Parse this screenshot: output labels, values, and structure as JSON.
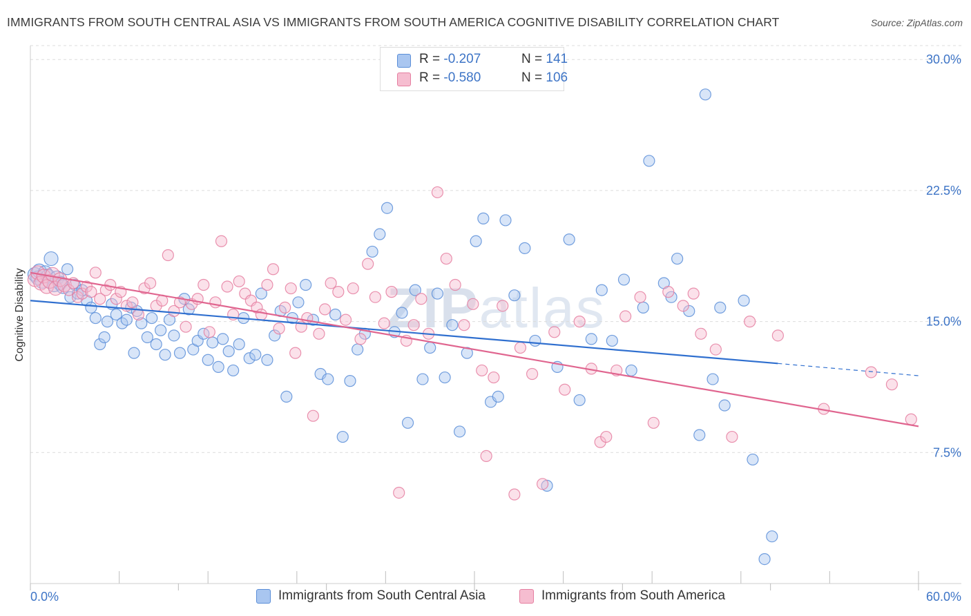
{
  "title": "IMMIGRANTS FROM SOUTH CENTRAL ASIA VS IMMIGRANTS FROM SOUTH AMERICA COGNITIVE DISABILITY CORRELATION CHART",
  "source": "Source: ZipAtlas.com",
  "watermark": {
    "zip": "ZIP",
    "atlas": "atlas"
  },
  "legend": {
    "r_label": "R =",
    "n_label": "N =",
    "rows": [
      {
        "r_value": "-0.207",
        "n_value": "141",
        "color": "#a9c6f0",
        "border": "#5a8ed8"
      },
      {
        "r_value": "-0.580",
        "n_value": "106",
        "color": "#f6bdd0",
        "border": "#e57ea0"
      }
    ]
  },
  "bottom_legend": [
    {
      "label": "Immigrants from South Central Asia",
      "color": "#a9c6f0",
      "border": "#5a8ed8"
    },
    {
      "label": "Immigrants from South America",
      "color": "#f6bdd0",
      "border": "#e57ea0"
    }
  ],
  "chart_data": {
    "type": "scatter",
    "title": "IMMIGRANTS FROM SOUTH CENTRAL ASIA VS IMMIGRANTS FROM SOUTH AMERICA COGNITIVE DISABILITY CORRELATION CHART",
    "xlabel": "",
    "ylabel": "Cognitive Disability",
    "xlim": [
      0,
      60
    ],
    "ylim": [
      0,
      30.8
    ],
    "x_tick_labels": [
      "0.0%",
      "60.0%"
    ],
    "y_ticks": [
      7.5,
      15.0,
      22.5,
      30.0
    ],
    "y_tick_labels": [
      "7.5%",
      "15.0%",
      "22.5%",
      "30.0%"
    ],
    "grid": true,
    "legend_position": "top-center",
    "series": [
      {
        "name": "Immigrants from South Central Asia",
        "color": "#5a8ed8",
        "fill": "#a9c6f0",
        "r": -0.207,
        "n": 141,
        "trend": {
          "x0": 0,
          "y0": 16.2,
          "x1": 50.5,
          "y1": 12.6,
          "dashed_to_x": 60,
          "dashed_to_y": 11.9,
          "color": "#2f6fcf"
        },
        "points": [
          [
            0.3,
            17.7
          ],
          [
            0.5,
            17.5
          ],
          [
            0.6,
            17.9
          ],
          [
            0.8,
            17.3
          ],
          [
            1.0,
            17.8
          ],
          [
            1.2,
            17.6
          ],
          [
            1.4,
            18.6
          ],
          [
            1.6,
            17.1
          ],
          [
            1.8,
            17.5
          ],
          [
            2.0,
            17.2
          ],
          [
            2.2,
            17.0
          ],
          [
            2.5,
            18.0
          ],
          [
            2.7,
            16.4
          ],
          [
            3.0,
            17.1
          ],
          [
            3.2,
            16.6
          ],
          [
            3.5,
            16.8
          ],
          [
            3.8,
            16.2
          ],
          [
            4.1,
            15.8
          ],
          [
            4.4,
            15.2
          ],
          [
            4.7,
            13.7
          ],
          [
            5.0,
            14.1
          ],
          [
            5.2,
            15.0
          ],
          [
            5.5,
            16.0
          ],
          [
            5.8,
            15.4
          ],
          [
            6.2,
            14.9
          ],
          [
            6.5,
            15.1
          ],
          [
            6.8,
            15.8
          ],
          [
            7.0,
            13.2
          ],
          [
            7.2,
            15.6
          ],
          [
            7.5,
            14.9
          ],
          [
            7.9,
            14.1
          ],
          [
            8.2,
            15.2
          ],
          [
            8.5,
            13.7
          ],
          [
            8.8,
            14.5
          ],
          [
            9.1,
            13.1
          ],
          [
            9.4,
            15.1
          ],
          [
            9.7,
            14.2
          ],
          [
            10.1,
            13.2
          ],
          [
            10.4,
            16.3
          ],
          [
            10.7,
            15.7
          ],
          [
            11.0,
            13.4
          ],
          [
            11.3,
            13.9
          ],
          [
            11.7,
            14.3
          ],
          [
            12.0,
            12.8
          ],
          [
            12.3,
            13.8
          ],
          [
            12.7,
            12.4
          ],
          [
            13.0,
            14.0
          ],
          [
            13.4,
            13.3
          ],
          [
            13.7,
            12.2
          ],
          [
            14.1,
            13.7
          ],
          [
            14.4,
            15.2
          ],
          [
            14.8,
            12.9
          ],
          [
            15.2,
            13.1
          ],
          [
            15.6,
            16.6
          ],
          [
            16.0,
            12.8
          ],
          [
            16.5,
            14.2
          ],
          [
            16.9,
            15.6
          ],
          [
            17.3,
            10.7
          ],
          [
            17.7,
            15.2
          ],
          [
            18.1,
            16.1
          ],
          [
            18.6,
            17.1
          ],
          [
            19.1,
            15.1
          ],
          [
            19.6,
            12.0
          ],
          [
            20.1,
            11.7
          ],
          [
            20.6,
            15.4
          ],
          [
            21.1,
            8.4
          ],
          [
            21.6,
            11.6
          ],
          [
            22.1,
            13.4
          ],
          [
            22.6,
            14.3
          ],
          [
            23.1,
            19.0
          ],
          [
            23.6,
            20.0
          ],
          [
            24.1,
            21.5
          ],
          [
            24.6,
            14.4
          ],
          [
            25.1,
            15.5
          ],
          [
            25.5,
            9.2
          ],
          [
            26.0,
            16.8
          ],
          [
            26.5,
            11.7
          ],
          [
            27.0,
            13.5
          ],
          [
            27.5,
            16.6
          ],
          [
            28.0,
            11.8
          ],
          [
            28.5,
            14.8
          ],
          [
            29.0,
            8.7
          ],
          [
            29.5,
            13.2
          ],
          [
            30.1,
            19.6
          ],
          [
            30.6,
            20.9
          ],
          [
            31.1,
            10.4
          ],
          [
            31.6,
            10.7
          ],
          [
            32.1,
            20.8
          ],
          [
            32.7,
            16.5
          ],
          [
            33.4,
            19.2
          ],
          [
            34.1,
            13.9
          ],
          [
            34.9,
            5.6
          ],
          [
            35.6,
            12.4
          ],
          [
            36.4,
            19.7
          ],
          [
            37.1,
            10.5
          ],
          [
            37.9,
            14.0
          ],
          [
            38.6,
            16.8
          ],
          [
            39.3,
            13.9
          ],
          [
            40.1,
            17.4
          ],
          [
            40.6,
            12.2
          ],
          [
            41.4,
            15.8
          ],
          [
            41.8,
            24.2
          ],
          [
            42.8,
            17.2
          ],
          [
            43.3,
            16.4
          ],
          [
            43.7,
            18.6
          ],
          [
            44.5,
            15.6
          ],
          [
            45.2,
            8.5
          ],
          [
            45.6,
            28.0
          ],
          [
            46.1,
            11.7
          ],
          [
            46.6,
            15.8
          ],
          [
            46.9,
            10.2
          ],
          [
            48.2,
            16.2
          ],
          [
            48.8,
            7.1
          ],
          [
            49.6,
            1.4
          ],
          [
            50.1,
            2.7
          ]
        ]
      },
      {
        "name": "Immigrants from South America",
        "color": "#e57ea0",
        "fill": "#f6bdd0",
        "r": -0.58,
        "n": 106,
        "trend": {
          "x0": 0,
          "y0": 17.8,
          "x1": 60,
          "y1": 9.0,
          "color": "#e0658f"
        },
        "points": [
          [
            0.3,
            17.4
          ],
          [
            0.5,
            17.8
          ],
          [
            0.7,
            17.2
          ],
          [
            0.9,
            17.6
          ],
          [
            1.1,
            17.0
          ],
          [
            1.3,
            17.3
          ],
          [
            1.5,
            17.7
          ],
          [
            1.7,
            16.9
          ],
          [
            2.0,
            17.4
          ],
          [
            2.3,
            17.1
          ],
          [
            2.6,
            16.8
          ],
          [
            2.9,
            17.2
          ],
          [
            3.2,
            16.4
          ],
          [
            3.5,
            16.6
          ],
          [
            3.8,
            17.0
          ],
          [
            4.1,
            16.7
          ],
          [
            4.4,
            17.8
          ],
          [
            4.7,
            16.3
          ],
          [
            5.1,
            16.8
          ],
          [
            5.4,
            17.1
          ],
          [
            5.8,
            16.3
          ],
          [
            6.1,
            16.7
          ],
          [
            6.5,
            15.9
          ],
          [
            6.9,
            16.1
          ],
          [
            7.3,
            15.4
          ],
          [
            7.7,
            16.9
          ],
          [
            8.1,
            17.2
          ],
          [
            8.5,
            15.9
          ],
          [
            8.9,
            16.2
          ],
          [
            9.3,
            18.8
          ],
          [
            9.7,
            15.6
          ],
          [
            10.1,
            16.1
          ],
          [
            10.5,
            14.7
          ],
          [
            10.9,
            16.0
          ],
          [
            11.3,
            16.3
          ],
          [
            11.7,
            17.1
          ],
          [
            12.1,
            14.4
          ],
          [
            12.5,
            16.1
          ],
          [
            12.9,
            19.6
          ],
          [
            13.3,
            17.0
          ],
          [
            13.7,
            15.4
          ],
          [
            14.1,
            17.3
          ],
          [
            14.5,
            16.6
          ],
          [
            14.9,
            16.2
          ],
          [
            15.3,
            15.8
          ],
          [
            15.6,
            15.4
          ],
          [
            16.0,
            17.1
          ],
          [
            16.4,
            18.0
          ],
          [
            16.8,
            14.6
          ],
          [
            17.2,
            15.8
          ],
          [
            17.6,
            16.9
          ],
          [
            17.9,
            13.2
          ],
          [
            18.3,
            14.7
          ],
          [
            18.7,
            15.2
          ],
          [
            19.1,
            9.6
          ],
          [
            19.5,
            14.3
          ],
          [
            19.9,
            15.7
          ],
          [
            20.3,
            17.2
          ],
          [
            20.8,
            16.7
          ],
          [
            21.3,
            15.1
          ],
          [
            21.8,
            16.9
          ],
          [
            22.3,
            14.0
          ],
          [
            22.8,
            18.3
          ],
          [
            23.3,
            16.4
          ],
          [
            23.9,
            14.9
          ],
          [
            24.4,
            16.7
          ],
          [
            24.9,
            5.2
          ],
          [
            25.4,
            13.9
          ],
          [
            25.9,
            14.8
          ],
          [
            26.4,
            16.3
          ],
          [
            26.9,
            14.3
          ],
          [
            27.5,
            22.4
          ],
          [
            28.1,
            18.6
          ],
          [
            28.7,
            17.1
          ],
          [
            29.3,
            14.8
          ],
          [
            29.9,
            16.0
          ],
          [
            30.5,
            12.2
          ],
          [
            30.8,
            7.3
          ],
          [
            31.3,
            11.8
          ],
          [
            31.9,
            15.9
          ],
          [
            32.7,
            5.1
          ],
          [
            33.1,
            13.5
          ],
          [
            33.9,
            12.0
          ],
          [
            34.6,
            5.7
          ],
          [
            35.4,
            14.4
          ],
          [
            36.1,
            11.1
          ],
          [
            37.1,
            15.0
          ],
          [
            37.9,
            12.3
          ],
          [
            38.5,
            8.1
          ],
          [
            38.9,
            8.4
          ],
          [
            39.6,
            12.2
          ],
          [
            40.2,
            15.3
          ],
          [
            41.2,
            16.4
          ],
          [
            42.1,
            9.2
          ],
          [
            43.1,
            16.7
          ],
          [
            44.1,
            15.9
          ],
          [
            44.8,
            16.6
          ],
          [
            45.3,
            14.3
          ],
          [
            46.3,
            13.4
          ],
          [
            47.4,
            8.4
          ],
          [
            48.6,
            15.0
          ],
          [
            50.5,
            14.2
          ],
          [
            53.6,
            10.0
          ],
          [
            56.8,
            12.1
          ],
          [
            58.2,
            11.4
          ],
          [
            59.5,
            9.4
          ]
        ]
      }
    ]
  }
}
